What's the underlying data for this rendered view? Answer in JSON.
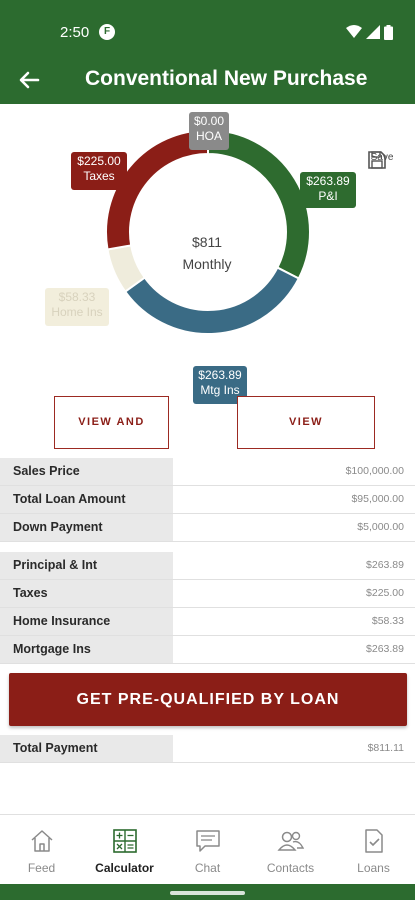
{
  "status": {
    "time": "2:50"
  },
  "appbar": {
    "title": "Conventional New Purchase"
  },
  "chart": {
    "center_amount": "$811",
    "center_label": "Monthly",
    "tags": {
      "hoa": {
        "amount": "$0.00",
        "label": "HOA"
      },
      "taxes": {
        "amount": "$225.00",
        "label": "Taxes"
      },
      "pi": {
        "amount": "$263.89",
        "label": "P&I"
      },
      "insurance": {
        "amount": "$58.33",
        "label": "Home Ins"
      },
      "mtg": {
        "amount": "$263.89",
        "label": "Mtg Ins"
      }
    },
    "save_label": "Save"
  },
  "chart_data": {
    "type": "pie",
    "slices": [
      {
        "label": "HOA",
        "value": 0.0
      },
      {
        "label": "P&I",
        "value": 263.89
      },
      {
        "label": "Mtg Ins",
        "value": 263.89
      },
      {
        "label": "Home Ins",
        "value": 58.33
      },
      {
        "label": "Taxes",
        "value": 225.0
      }
    ],
    "colors": {
      "P&I": "#2e6b2f",
      "Mtg Ins": "#3a6b85",
      "Home Ins": "#efecdc",
      "Taxes": "#8b1e17",
      "HOA": "#8a8a8a"
    }
  },
  "buttons": {
    "view_share": "VIEW AND SHARE",
    "view_amortization": "VIEW AMORTIZATION",
    "cta": "GET PRE-QUALIFIED BY LOAN"
  },
  "loan_table": [
    {
      "label": "Sales Price",
      "value": "$100,000.00"
    },
    {
      "label": "Total Loan Amount",
      "value": "$95,000.00"
    },
    {
      "label": "Down Payment",
      "value": "$5,000.00"
    }
  ],
  "payment_table": [
    {
      "label": "Principal & Int",
      "value": "$263.89"
    },
    {
      "label": "Taxes",
      "value": "$225.00"
    },
    {
      "label": "Home Insurance",
      "value": "$58.33"
    },
    {
      "label": "Mortgage Ins",
      "value": "$263.89"
    }
  ],
  "total": {
    "label": "Total Payment",
    "value": "$811.11"
  },
  "nav": [
    {
      "label": "Feed",
      "icon": "home-icon"
    },
    {
      "label": "Calculator",
      "icon": "calculator-icon"
    },
    {
      "label": "Chat",
      "icon": "chat-icon"
    },
    {
      "label": "Contacts",
      "icon": "contacts-icon"
    },
    {
      "label": "Loans",
      "icon": "loans-icon"
    }
  ],
  "colors": {
    "brand_green": "#2c6b2f",
    "brand_red": "#8b1e17"
  }
}
